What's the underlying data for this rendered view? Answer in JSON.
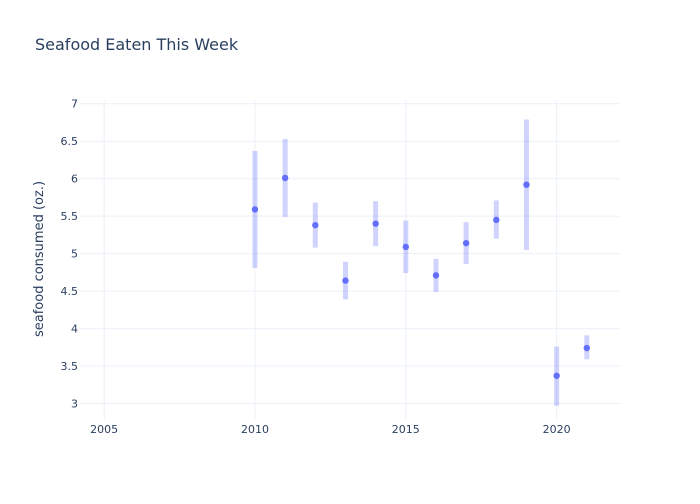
{
  "chart_data": {
    "type": "scatter",
    "title": "Seafood Eaten This Week",
    "xlabel": "",
    "ylabel": "seafood consumed (oz.)",
    "xlim": [
      2004.2,
      2022.1
    ],
    "ylim": [
      2.78,
      7.05
    ],
    "x_ticks": [
      2005,
      2010,
      2015,
      2020
    ],
    "y_ticks": [
      3,
      3.5,
      4,
      4.5,
      5,
      5.5,
      6,
      6.5,
      7
    ],
    "y_tick_labels": [
      "3",
      "3.5",
      "4",
      "4.5",
      "5",
      "5.5",
      "6",
      "6.5",
      "7"
    ],
    "grid": true,
    "legend": "none",
    "colors": {
      "marker": "#636efa",
      "error_bar": "rgba(99,110,250,0.3)",
      "grid": "#ebf0f8",
      "text": "#2a3f5f"
    },
    "points": [
      {
        "x": 2010,
        "y": 5.59,
        "y_low": 4.81,
        "y_high": 6.37
      },
      {
        "x": 2011,
        "y": 6.01,
        "y_low": 5.49,
        "y_high": 6.53
      },
      {
        "x": 2012,
        "y": 5.38,
        "y_low": 5.08,
        "y_high": 5.68
      },
      {
        "x": 2013,
        "y": 4.64,
        "y_low": 4.39,
        "y_high": 4.89
      },
      {
        "x": 2014,
        "y": 5.4,
        "y_low": 5.1,
        "y_high": 5.7
      },
      {
        "x": 2015,
        "y": 5.09,
        "y_low": 4.74,
        "y_high": 5.44
      },
      {
        "x": 2016,
        "y": 4.71,
        "y_low": 4.49,
        "y_high": 4.93
      },
      {
        "x": 2017,
        "y": 5.14,
        "y_low": 4.86,
        "y_high": 5.42
      },
      {
        "x": 2018,
        "y": 5.45,
        "y_low": 5.2,
        "y_high": 5.71
      },
      {
        "x": 2019,
        "y": 5.92,
        "y_low": 5.05,
        "y_high": 6.79
      },
      {
        "x": 2020,
        "y": 3.37,
        "y_low": 2.97,
        "y_high": 3.76
      },
      {
        "x": 2021,
        "y": 3.74,
        "y_low": 3.59,
        "y_high": 3.91
      }
    ]
  }
}
